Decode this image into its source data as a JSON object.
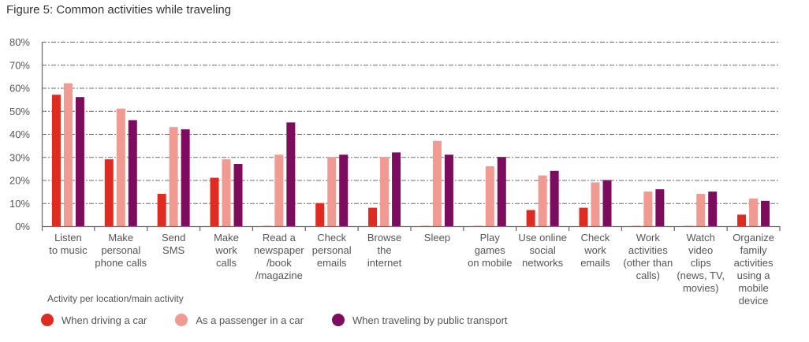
{
  "title": "Figure 5: Common activities while traveling",
  "chart_data": {
    "type": "bar",
    "title": "Figure 5: Common activities while traveling",
    "xlabel": "Activity per location/main activity",
    "ylabel": "",
    "ylim": [
      0,
      80
    ],
    "yticks": [
      "0%",
      "10%",
      "20%",
      "30%",
      "40%",
      "50%",
      "60%",
      "70%",
      "80%"
    ],
    "ytick_values": [
      0,
      10,
      20,
      30,
      40,
      50,
      60,
      70,
      80
    ],
    "grid": true,
    "legend_position": "bottom-left",
    "categories": [
      "Listen\nto music",
      "Make\npersonal\nphone calls",
      "Send\nSMS",
      "Make\nwork\ncalls",
      "Read a\nnewspaper\n/book\n/magazine",
      "Check\npersonal\nemails",
      "Browse\nthe\ninternet",
      "Sleep",
      "Play\ngames\non mobile",
      "Use online\nsocial\nnetworks",
      "Check\nwork\nemails",
      "Work\nactivities\n(other than\ncalls)",
      "Watch\nvideo\nclips\n(news, TV,\nmovies)",
      "Organize\nfamily\nactivities\nusing a\nmobile\ndevice"
    ],
    "series": [
      {
        "name": "When driving a car",
        "color": "#e02b20",
        "values": [
          57,
          29,
          14,
          21,
          0,
          10,
          8,
          0,
          0,
          7,
          8,
          0,
          0,
          5
        ]
      },
      {
        "name": "As a passenger in a car",
        "color": "#f09a92",
        "values": [
          62,
          51,
          43,
          29,
          31,
          30,
          30,
          37,
          26,
          22,
          19,
          15,
          14,
          12
        ]
      },
      {
        "name": "When traveling by public transport",
        "color": "#7d0c5e",
        "values": [
          56,
          46,
          42,
          27,
          45,
          31,
          32,
          31,
          30,
          24,
          20,
          16,
          15,
          11
        ]
      }
    ]
  },
  "legend": {
    "title": "Activity per location/main activity",
    "items": [
      {
        "label": "When driving a car",
        "color": "#e02b20"
      },
      {
        "label": "As a passenger in a car",
        "color": "#f09a92"
      },
      {
        "label": "When traveling by public transport",
        "color": "#7d0c5e"
      }
    ]
  }
}
